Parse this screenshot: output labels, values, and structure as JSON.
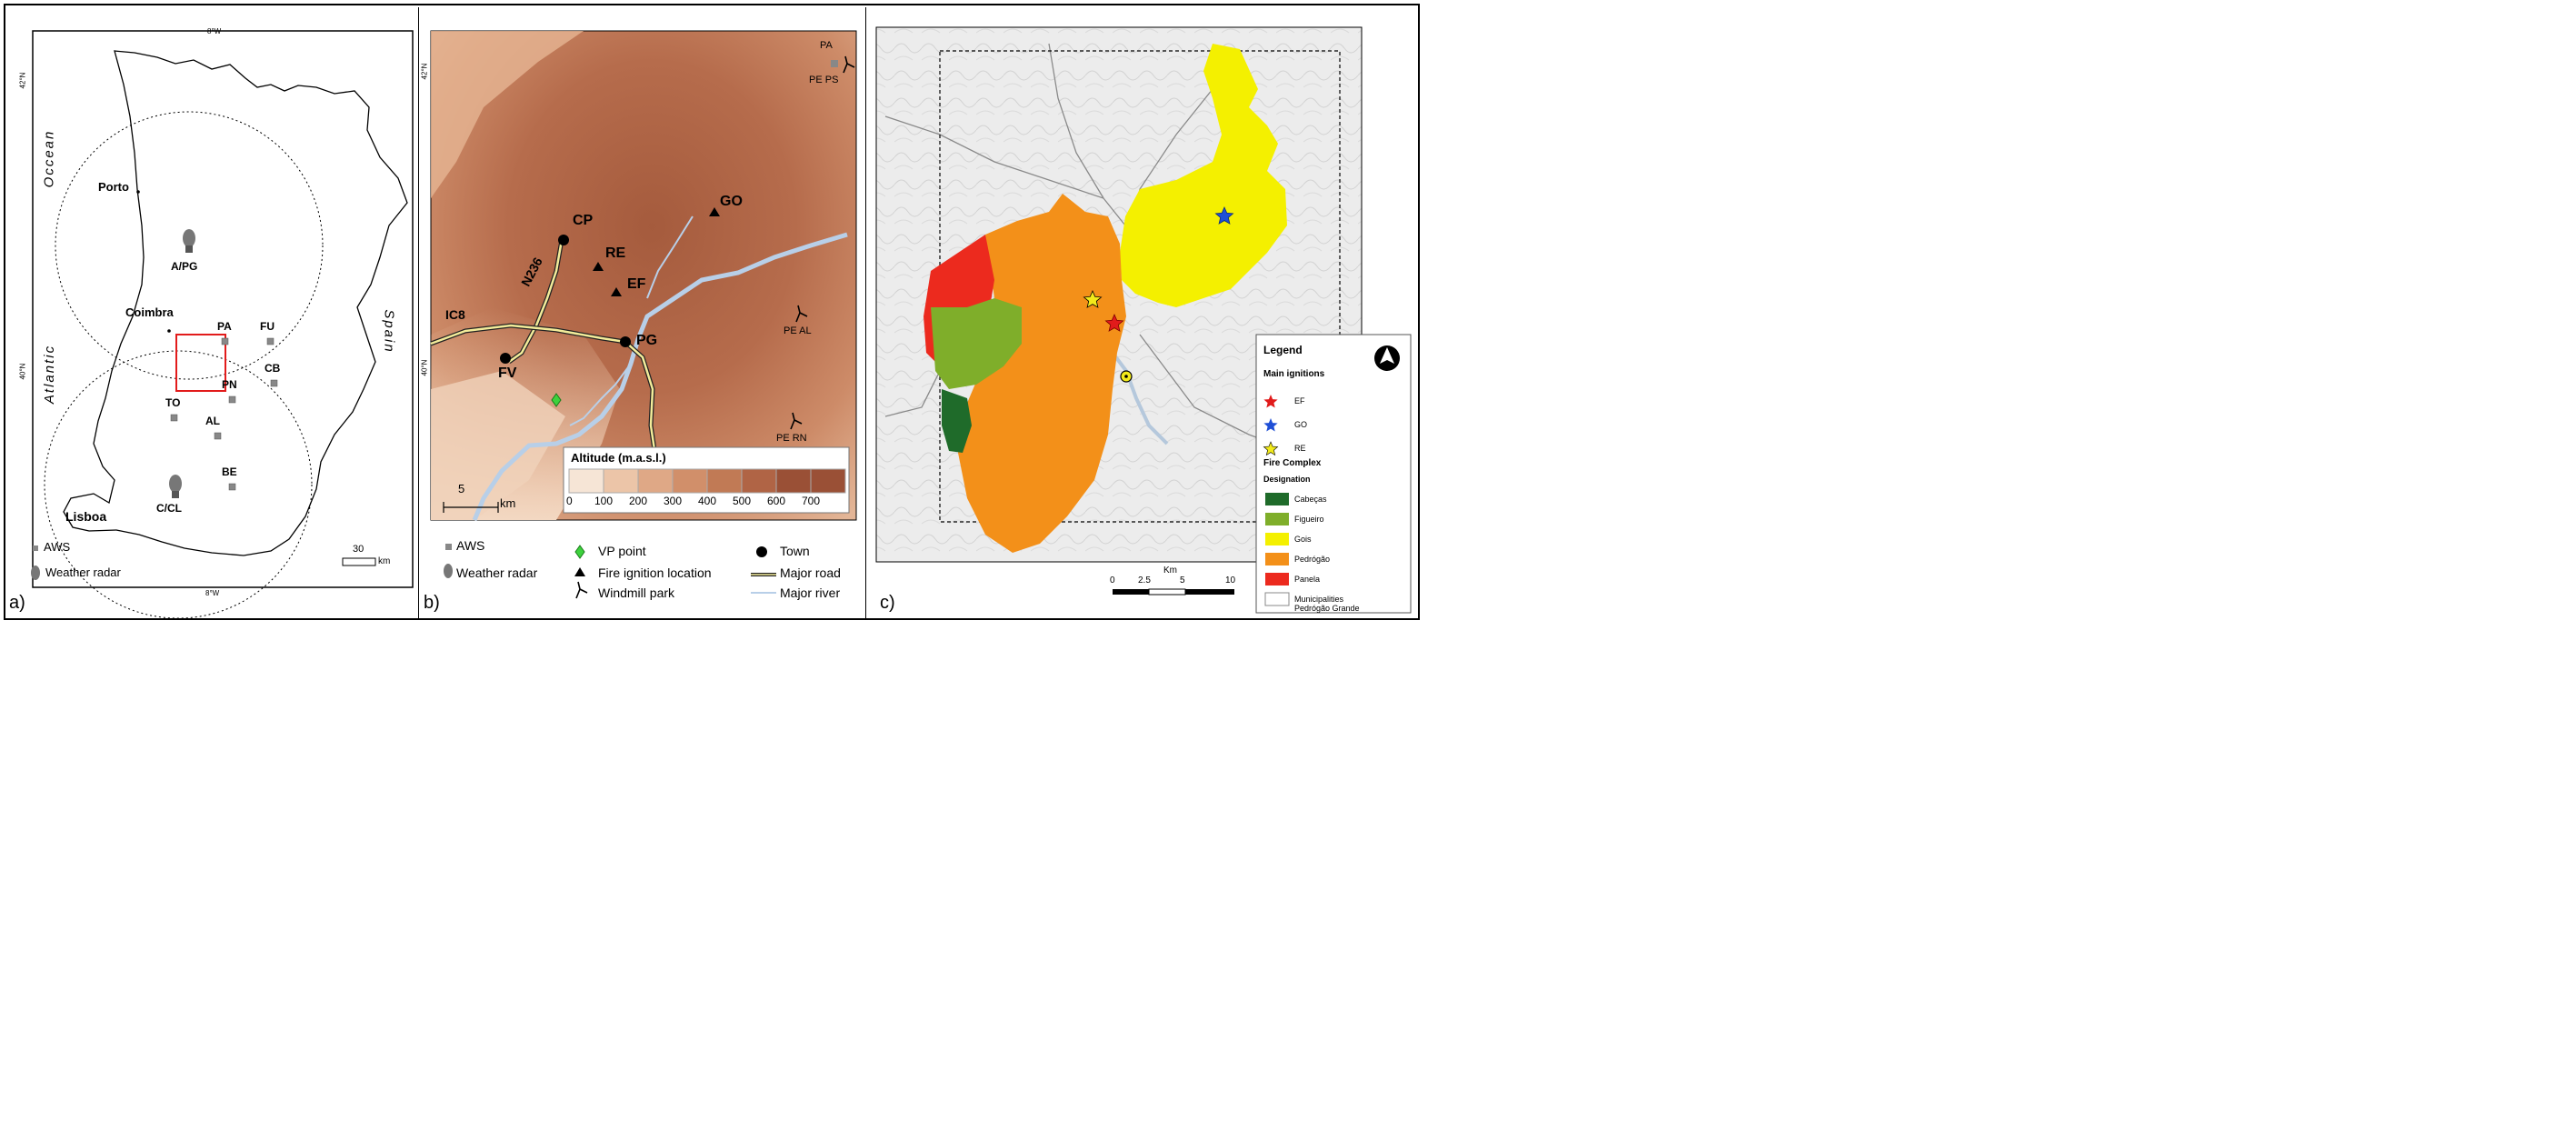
{
  "panel_a": {
    "letter": "a)",
    "coord_top": "8°W",
    "coord_bottom": "8°W",
    "coord_left_top": "42°N",
    "coord_left_mid": "40°N",
    "ocean_word1": "Occean",
    "ocean_word2": "Atlantic",
    "spain": "Spain",
    "cities": {
      "porto": "Porto",
      "coimbra": "Coimbra",
      "lisboa": "Lisboa"
    },
    "radars": {
      "north": "A/PG",
      "south": "C/CL"
    },
    "stations": [
      "PA",
      "FU",
      "CB",
      "PN",
      "TO",
      "AL",
      "BE"
    ],
    "scale_value": "30",
    "scale_unit": "km",
    "legend": {
      "aws": "AWS",
      "radar": "Weather radar"
    }
  },
  "panel_b": {
    "letter": "b)",
    "coord_top": "42°N",
    "coord_mid": "40°N",
    "stations": {
      "pa": "PA",
      "pe_ps": "PE PS",
      "pe_al": "PE AL",
      "pe_rn": "PE RN"
    },
    "towns": {
      "cp": "CP",
      "pg": "PG",
      "fv": "FV"
    },
    "ignitions": {
      "go": "GO",
      "re": "RE",
      "ef": "EF"
    },
    "roads": {
      "n236": "N236",
      "ic8": "IC8"
    },
    "scale_value": "5",
    "scale_unit": "km",
    "altitude": {
      "title": "Altitude (m.a.s.l.)",
      "ticks": [
        "0",
        "100",
        "200",
        "300",
        "400",
        "500",
        "600",
        "700"
      ],
      "colors": [
        "#f6e5d6",
        "#ecc5a8",
        "#dfa886",
        "#d18f6a",
        "#c17a55",
        "#b06445",
        "#9a5036"
      ]
    },
    "legend": {
      "vp": "VP point",
      "town": "Town",
      "fire": "Fire ignition location",
      "road": "Major road",
      "windmill": "Windmill park",
      "river": "Major river"
    }
  },
  "panel_c": {
    "letter": "c)",
    "legend": {
      "title": "Legend",
      "main_ignitions": "Main ignitions",
      "ignitions": [
        {
          "label": "EF",
          "color": "#e11b1b"
        },
        {
          "label": "GO",
          "color": "#1f4fd6"
        },
        {
          "label": "RE",
          "color": "#f2ea1a"
        }
      ],
      "fire_complex": "Fire Complex",
      "designation": "Designation",
      "complexes": [
        {
          "label": "Cabeças",
          "color": "#1f6b2a"
        },
        {
          "label": "Figueiro",
          "color": "#7fae2a"
        },
        {
          "label": "Gois",
          "color": "#f4f000"
        },
        {
          "label": "Pedrógão",
          "color": "#f39019"
        },
        {
          "label": "Panela",
          "color": "#ec2a1e"
        },
        {
          "label": "Municipalities",
          "color": "#ffffff"
        }
      ],
      "pedrogao": "Pedrógão Grande"
    },
    "scale": {
      "unit": "Km",
      "ticks": [
        "0",
        "2.5",
        "5",
        "10"
      ]
    }
  }
}
